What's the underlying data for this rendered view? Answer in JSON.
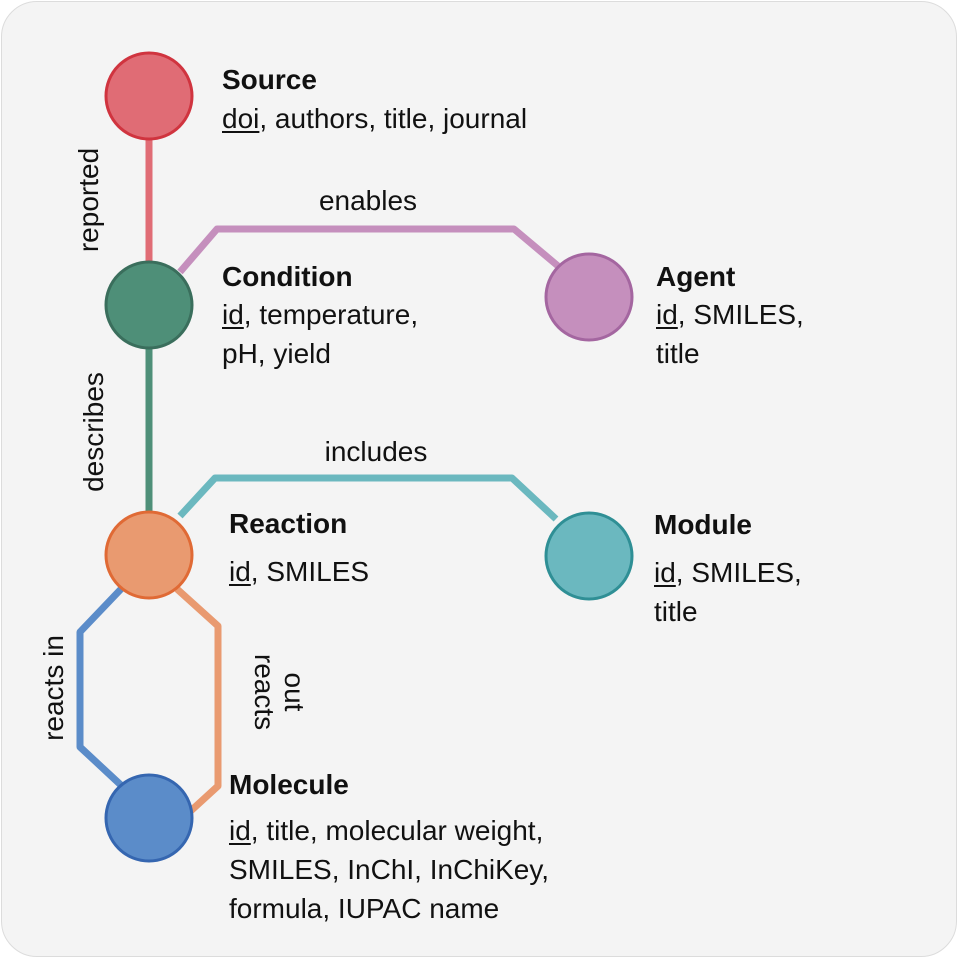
{
  "colors": {
    "source": "#e06c75",
    "source_stroke": "#d0343f",
    "condition": "#4e8f78",
    "condition_stroke": "#3a6e5c",
    "agent": "#c58fbd",
    "agent_stroke": "#a466a0",
    "reaction": "#e99a70",
    "reaction_stroke": "#e06a35",
    "module": "#6bb8bf",
    "module_stroke": "#2f8f95",
    "molecule": "#5b8cc9",
    "molecule_stroke": "#3566b0"
  },
  "nodes": {
    "source": {
      "title": "Source",
      "key": "doi",
      "attrs": ", authors, title, journal"
    },
    "condition": {
      "title": "Condition",
      "key": "id",
      "attrs": ", temperature,\npH, yield"
    },
    "agent": {
      "title": "Agent",
      "key": "id",
      "attrs": ", SMILES,\ntitle"
    },
    "reaction": {
      "title": "Reaction",
      "key": "id",
      "attrs": ", SMILES"
    },
    "module": {
      "title": "Module",
      "key": "id",
      "attrs": ", SMILES,\ntitle"
    },
    "molecule": {
      "title": "Molecule",
      "key": "id",
      "attrs": ", title, molecular weight,\nSMILES, InChI, InChiKey,\nformula, IUPAC name"
    }
  },
  "edges": {
    "reported": "reported",
    "enables": "enables",
    "describes": "describes",
    "includes": "includes",
    "reacts_in": "reacts in",
    "reacts_out_line1": "reacts",
    "reacts_out_line2": "out"
  }
}
